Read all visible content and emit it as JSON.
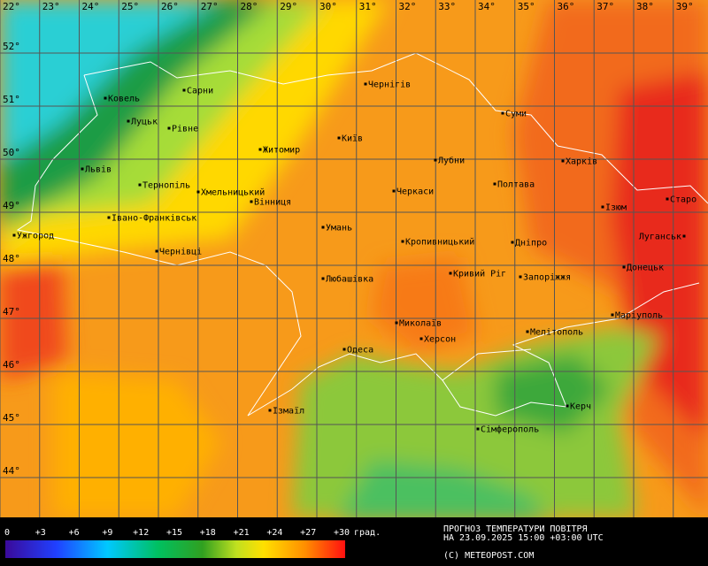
{
  "map": {
    "longitudes": [
      {
        "value": 22,
        "label": "22°"
      },
      {
        "value": 23,
        "label": "23°"
      },
      {
        "value": 24,
        "label": "24°"
      },
      {
        "value": 25,
        "label": "25°"
      },
      {
        "value": 26,
        "label": "26°"
      },
      {
        "value": 27,
        "label": "27°"
      },
      {
        "value": 28,
        "label": "28°"
      },
      {
        "value": 29,
        "label": "29°"
      },
      {
        "value": 30,
        "label": "30°"
      },
      {
        "value": 31,
        "label": "31°"
      },
      {
        "value": 32,
        "label": "32°"
      },
      {
        "value": 33,
        "label": "33°"
      },
      {
        "value": 34,
        "label": "34°"
      },
      {
        "value": 35,
        "label": "35°"
      },
      {
        "value": 36,
        "label": "36°"
      },
      {
        "value": 37,
        "label": "37°"
      },
      {
        "value": 38,
        "label": "38°"
      },
      {
        "value": 39,
        "label": "39°"
      }
    ],
    "latitudes": [
      {
        "value": 52,
        "label": "52°"
      },
      {
        "value": 51,
        "label": "51°"
      },
      {
        "value": 50,
        "label": "50°"
      },
      {
        "value": 49,
        "label": "49°"
      },
      {
        "value": 48,
        "label": "48°"
      },
      {
        "value": 47,
        "label": "47°"
      },
      {
        "value": 46,
        "label": "46°"
      },
      {
        "value": 45,
        "label": "45°"
      },
      {
        "value": 44,
        "label": "44°"
      }
    ],
    "cities": [
      "Ковель",
      "Сарни",
      "Луцьк",
      "Рівне",
      "Житомир",
      "Київ",
      "Чернігів",
      "Суми",
      "Львів",
      "Тернопіль",
      "Хмельницький",
      "Вінниця",
      "Лубни",
      "Харків",
      "Полтава",
      "Черкаси",
      "Ізюм",
      "Старо",
      "Луганськ",
      "Ужгород",
      "Івано-Франківськ",
      "Умань",
      "Кропивницький",
      "Дніпро",
      "Чернівці",
      "Донецьк",
      "Любашівка",
      "Кривий Ріг",
      "Запоріжжя",
      "Маріуполь",
      "Миколаїв",
      "Мелітополь",
      "Херсон",
      "Одеса",
      "Ізмаїл",
      "Керч",
      "Сімферополь"
    ],
    "legend": {
      "ticks": [
        0,
        {
          "value": 3,
          "label": "+3"
        },
        {
          "value": 6,
          "label": "+6"
        },
        {
          "value": 9,
          "label": "+9"
        },
        {
          "value": 12,
          "label": "+12"
        },
        {
          "value": 15,
          "label": "+15"
        },
        {
          "value": 18,
          "label": "+18"
        },
        {
          "value": 21,
          "label": "+21"
        },
        {
          "value": 24,
          "label": "+24"
        },
        {
          "value": 27,
          "label": "+27"
        },
        {
          "value": 30,
          "label": "+30"
        }
      ],
      "unit": "град."
    },
    "title": [
      "ПРОГНОЗ ТЕМПЕРАТУРИ ПОВІТРЯ",
      "НА 23.09.2025 15:00 +03:00 UTC"
    ],
    "copyright": "(C) METEOPOST.COM"
  }
}
